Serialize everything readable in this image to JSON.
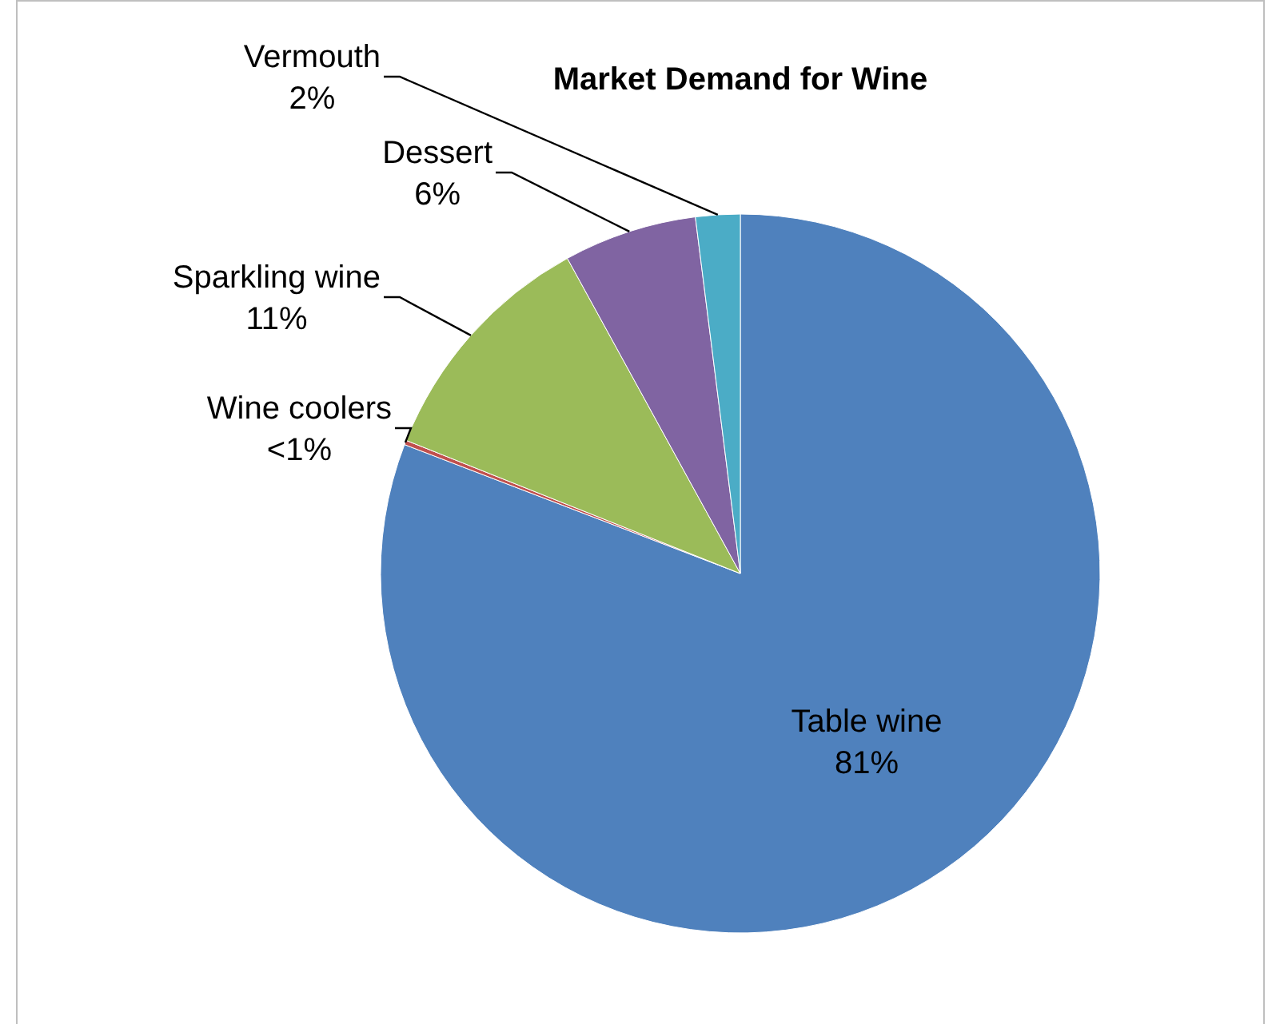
{
  "chart_data": {
    "type": "pie",
    "title": "Market Demand for Wine",
    "categories": [
      "Table wine",
      "Wine coolers",
      "Sparkling wine",
      "Dessert",
      "Vermouth"
    ],
    "values": [
      81,
      0.2,
      11,
      6,
      2
    ],
    "value_labels": [
      "81%",
      "<1%",
      "11%",
      "6%",
      "2%"
    ],
    "colors": [
      "#4f81bd",
      "#c0504d",
      "#9bbb59",
      "#8064a2",
      "#4bacc6"
    ],
    "legend": false
  }
}
